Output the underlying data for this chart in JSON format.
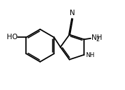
{
  "bg_color": "#ffffff",
  "line_color": "#000000",
  "line_width": 1.3,
  "font_size": 7.5,
  "font_size_sub": 5.8,
  "figsize": [
    1.83,
    1.31
  ],
  "dpi": 100,
  "xlim": [
    0.0,
    1.0
  ],
  "ylim": [
    0.1,
    0.95
  ]
}
